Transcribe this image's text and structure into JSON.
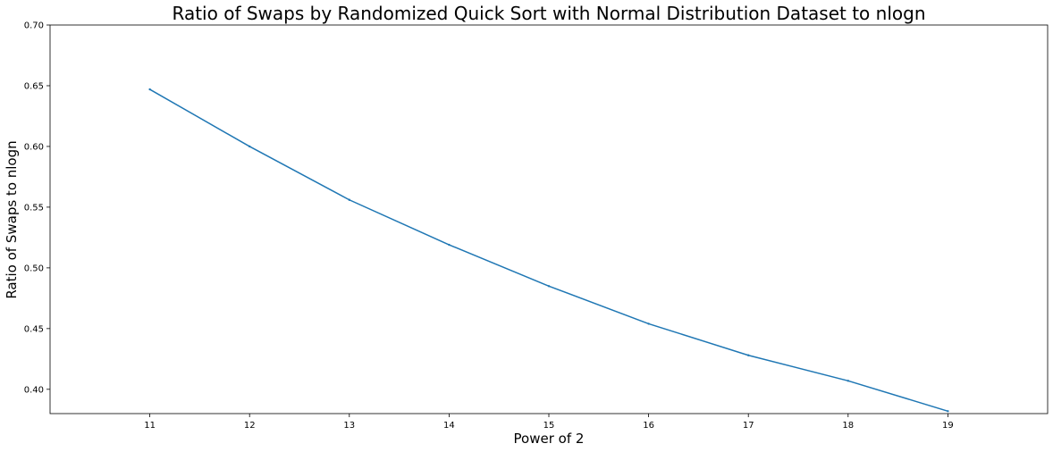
{
  "chart_data": {
    "type": "line",
    "title": "Ratio of Swaps by Randomized Quick Sort with Normal Distribution Dataset to nlogn",
    "xlabel": "Power of 2",
    "ylabel": "Ratio of Swaps to nlogn",
    "x": [
      11,
      12,
      13,
      14,
      15,
      16,
      17,
      18,
      19
    ],
    "series": [
      {
        "name": "ratio",
        "color": "#1f77b4",
        "values": [
          0.647,
          0.6,
          0.556,
          0.519,
          0.485,
          0.454,
          0.428,
          0.407,
          0.382
        ]
      }
    ],
    "xlim": [
      10,
      20
    ],
    "ylim": [
      0.38,
      0.7
    ],
    "xticks": [
      "11",
      "12",
      "13",
      "14",
      "15",
      "16",
      "17",
      "18",
      "19"
    ],
    "yticks": [
      "0.40",
      "0.45",
      "0.50",
      "0.55",
      "0.60",
      "0.65",
      "0.70"
    ],
    "grid": false
  }
}
